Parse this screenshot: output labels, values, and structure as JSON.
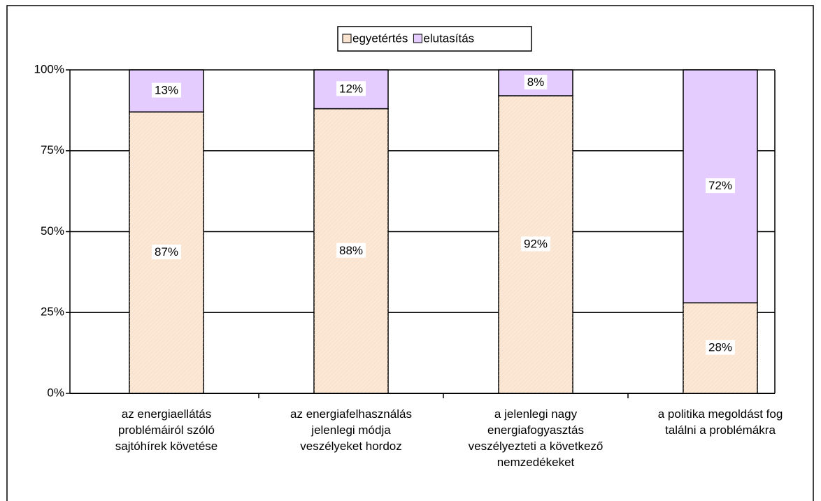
{
  "chart_data": {
    "type": "stacked_bar",
    "categories": [
      "az energiaellátás\nproblémáiról szóló\nsajtóhírek követése",
      "az energiafelhasználás\njelenlegi módja\nveszélyeket hordoz",
      "a jelenlegi nagy\nenergiafogyasztás\nveszélyezteti a következő\nnemzedékeket",
      "a politika megoldást fog\ntalálni a problémákra"
    ],
    "series": [
      {
        "name": "egyetértés",
        "color": "#fbe4cf",
        "values": [
          87,
          88,
          92,
          28
        ],
        "value_labels": [
          "87%",
          "88%",
          "92%",
          "28%"
        ]
      },
      {
        "name": "elutasítás",
        "color": "#e5ccff",
        "values": [
          13,
          12,
          8,
          72
        ],
        "value_labels": [
          "13%",
          "12%",
          "8%",
          "72%"
        ]
      }
    ],
    "ylim": [
      0,
      100
    ],
    "yticks": [
      {
        "value": 0,
        "label": "0%"
      },
      {
        "value": 25,
        "label": "25%"
      },
      {
        "value": 50,
        "label": "50%"
      },
      {
        "value": 75,
        "label": "75%"
      },
      {
        "value": 100,
        "label": "100%"
      }
    ],
    "grid": true,
    "legend": "top"
  }
}
